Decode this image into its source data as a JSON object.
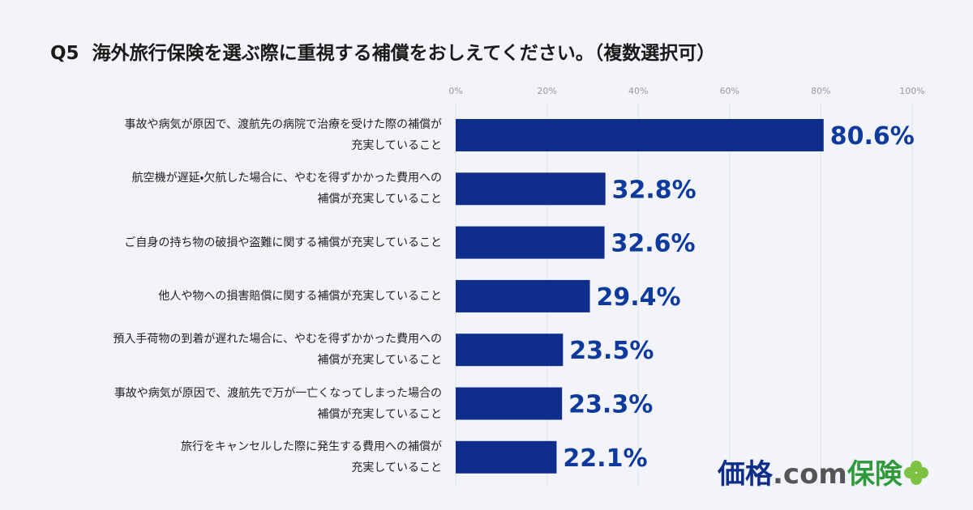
{
  "chart_data": {
    "type": "barh",
    "title": "Q5  海外旅行保険を選ぶ際に重視する補償をおしえてください。（複数選択可）",
    "categories": [
      "事故や病気が原因で、渡航先の病院で治療を受けた際の補償が\n充実していること",
      "航空機が遅延・欠航した場合に、やむを得ずかかった費用への\n補償が充実していること",
      "ご自身の持ち物の破損や盗難に関する補償が充実していること",
      "他人や物への損害賠償に関する補償が充実していること",
      "預入手荷物の到着が遅れた場合に、やむを得ずかかった費用への\n補償が充実していること",
      "事故や病気が原因で、渡航先で万が一亡くなってしまった場合の\n補償が充実していること",
      "旅行をキャンセルした際に発生する費用への補償が\n充実していること"
    ],
    "values": [
      80.6,
      32.8,
      32.6,
      29.4,
      23.5,
      23.3,
      22.1
    ],
    "value_labels": [
      "80.6%",
      "32.8%",
      "32.6%",
      "29.4%",
      "23.5%",
      "23.3%",
      "22.1%"
    ],
    "color": "#0f2d8a",
    "xlim": [
      0,
      100
    ],
    "xticks": [
      {
        "value": 0,
        "label": "0%"
      },
      {
        "value": 20,
        "label": "20%"
      },
      {
        "value": 40,
        "label": "40%"
      },
      {
        "value": 60,
        "label": "60%"
      },
      {
        "value": 80,
        "label": "80%"
      },
      {
        "value": 100,
        "label": "100%"
      }
    ],
    "grid": true
  },
  "logo": {
    "part1": "価格",
    "part2": ".com",
    "part3": "保険"
  }
}
